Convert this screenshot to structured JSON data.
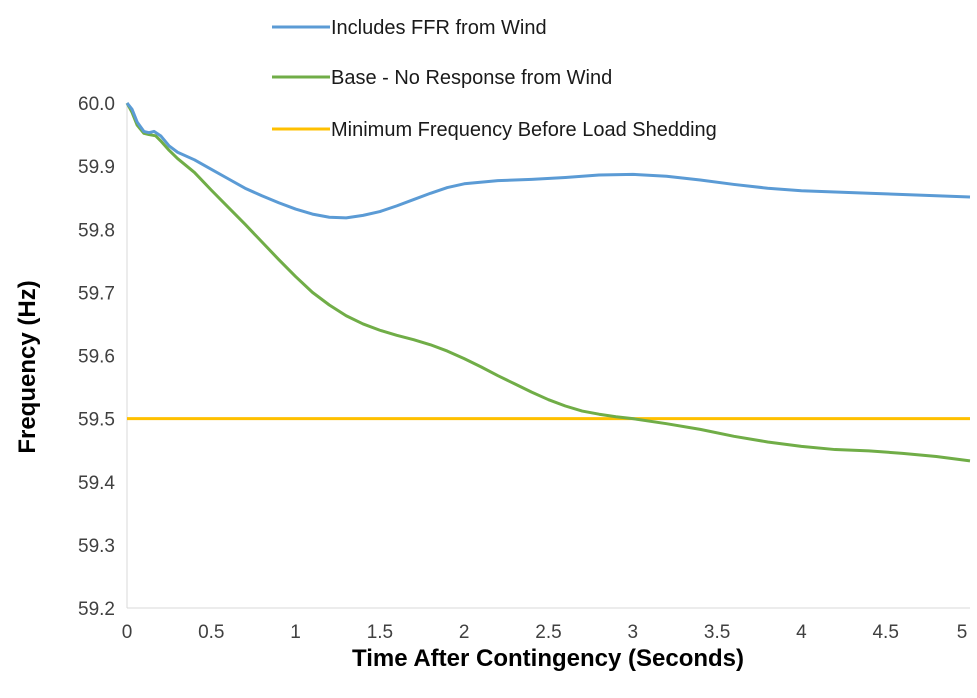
{
  "chart_data": {
    "type": "line",
    "title": "",
    "xlabel": "Time After Contingency (Seconds)",
    "ylabel": "Frequency (Hz)",
    "xlim": [
      0,
      5
    ],
    "ylim": [
      59.2,
      60.0
    ],
    "x_ticks": [
      "0",
      "0.5",
      "1",
      "1.5",
      "2",
      "2.5",
      "3",
      "3.5",
      "4",
      "4.5",
      "5"
    ],
    "y_ticks": [
      "59.2",
      "59.3",
      "59.4",
      "59.5",
      "59.6",
      "59.7",
      "59.8",
      "59.9",
      "60.0"
    ],
    "grid": false,
    "legend_position": "top",
    "series": [
      {
        "name": "Includes FFR from Wind",
        "color": "#5B9BD5",
        "points": [
          [
            0,
            60.0
          ],
          [
            0.03,
            59.99
          ],
          [
            0.06,
            59.97
          ],
          [
            0.1,
            59.955
          ],
          [
            0.13,
            59.953
          ],
          [
            0.16,
            59.955
          ],
          [
            0.2,
            59.948
          ],
          [
            0.25,
            59.932
          ],
          [
            0.3,
            59.922
          ],
          [
            0.4,
            59.91
          ],
          [
            0.5,
            59.895
          ],
          [
            0.6,
            59.88
          ],
          [
            0.7,
            59.865
          ],
          [
            0.8,
            59.853
          ],
          [
            0.9,
            59.842
          ],
          [
            1.0,
            59.832
          ],
          [
            1.1,
            59.824
          ],
          [
            1.2,
            59.819
          ],
          [
            1.3,
            59.818
          ],
          [
            1.4,
            59.822
          ],
          [
            1.5,
            59.828
          ],
          [
            1.6,
            59.837
          ],
          [
            1.7,
            59.847
          ],
          [
            1.8,
            59.857
          ],
          [
            1.9,
            59.866
          ],
          [
            2.0,
            59.872
          ],
          [
            2.2,
            59.877
          ],
          [
            2.4,
            59.879
          ],
          [
            2.6,
            59.882
          ],
          [
            2.8,
            59.886
          ],
          [
            3.0,
            59.887
          ],
          [
            3.2,
            59.884
          ],
          [
            3.4,
            59.878
          ],
          [
            3.6,
            59.871
          ],
          [
            3.8,
            59.865
          ],
          [
            4.0,
            59.861
          ],
          [
            4.2,
            59.859
          ],
          [
            4.4,
            59.857
          ],
          [
            4.6,
            59.855
          ],
          [
            4.8,
            59.853
          ],
          [
            5.0,
            59.851
          ]
        ]
      },
      {
        "name": "Base - No Response from Wind",
        "color": "#70AD47",
        "points": [
          [
            0,
            60.0
          ],
          [
            0.03,
            59.985
          ],
          [
            0.06,
            59.965
          ],
          [
            0.1,
            59.952
          ],
          [
            0.13,
            59.95
          ],
          [
            0.17,
            59.948
          ],
          [
            0.2,
            59.94
          ],
          [
            0.25,
            59.925
          ],
          [
            0.3,
            59.912
          ],
          [
            0.4,
            59.89
          ],
          [
            0.5,
            59.862
          ],
          [
            0.6,
            59.835
          ],
          [
            0.7,
            59.808
          ],
          [
            0.8,
            59.78
          ],
          [
            0.9,
            59.752
          ],
          [
            1.0,
            59.725
          ],
          [
            1.1,
            59.7
          ],
          [
            1.2,
            59.68
          ],
          [
            1.3,
            59.663
          ],
          [
            1.4,
            59.65
          ],
          [
            1.5,
            59.64
          ],
          [
            1.6,
            59.632
          ],
          [
            1.7,
            59.625
          ],
          [
            1.8,
            59.617
          ],
          [
            1.9,
            59.607
          ],
          [
            2.0,
            59.595
          ],
          [
            2.1,
            59.582
          ],
          [
            2.2,
            59.568
          ],
          [
            2.3,
            59.555
          ],
          [
            2.4,
            59.542
          ],
          [
            2.5,
            59.53
          ],
          [
            2.6,
            59.52
          ],
          [
            2.7,
            59.512
          ],
          [
            2.8,
            59.507
          ],
          [
            2.9,
            59.503
          ],
          [
            3.0,
            59.5
          ],
          [
            3.2,
            59.492
          ],
          [
            3.4,
            59.483
          ],
          [
            3.6,
            59.472
          ],
          [
            3.8,
            59.463
          ],
          [
            4.0,
            59.456
          ],
          [
            4.2,
            59.451
          ],
          [
            4.4,
            59.449
          ],
          [
            4.6,
            59.445
          ],
          [
            4.8,
            59.44
          ],
          [
            5.0,
            59.433
          ]
        ]
      },
      {
        "name": "Minimum Frequency Before Load Shedding",
        "color": "#FFC000",
        "points": [
          [
            0,
            59.5
          ],
          [
            5,
            59.5
          ]
        ]
      }
    ]
  }
}
